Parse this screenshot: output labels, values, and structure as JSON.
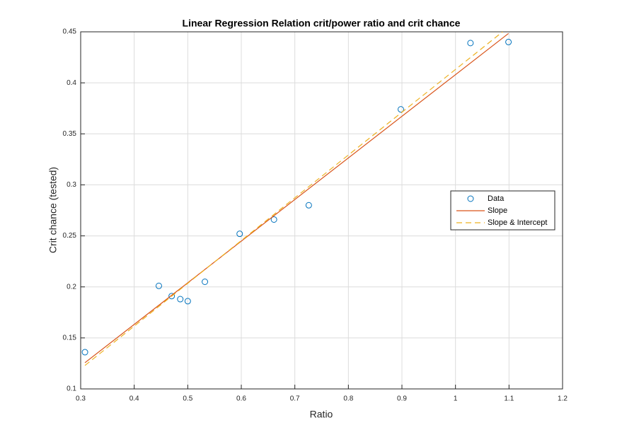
{
  "chart_data": {
    "type": "scatter",
    "title": "Linear Regression Relation crit/power ratio and crit chance",
    "xlabel": "Ratio",
    "ylabel": "Crit chance (tested)",
    "xlim": [
      0.3,
      1.2
    ],
    "xticks": [
      0.3,
      0.4,
      0.5,
      0.6,
      0.7,
      0.8,
      0.9,
      1,
      1.1,
      1.2
    ],
    "ylim": [
      0.1,
      0.45
    ],
    "yticks": [
      0.1,
      0.15,
      0.2,
      0.25,
      0.3,
      0.35,
      0.4,
      0.45
    ],
    "grid": true,
    "legend": "east",
    "series": [
      {
        "name": "Data",
        "color": "#0072bd",
        "style": "marker",
        "x": [
          0.308,
          0.446,
          0.47,
          0.486,
          0.5,
          0.532,
          0.597,
          0.661,
          0.726,
          0.898,
          1.028,
          1.099
        ],
        "values": [
          0.136,
          0.201,
          0.191,
          0.188,
          0.186,
          0.205,
          0.252,
          0.266,
          0.28,
          0.374,
          0.439,
          0.44
        ]
      },
      {
        "name": "Slope",
        "color": "#d95319",
        "style": "solid",
        "x": [
          0.308,
          1.099
        ],
        "values": [
          0.1257,
          0.4484
        ]
      },
      {
        "name": "Slope & Intercept",
        "color": "#edb120",
        "style": "dashed",
        "x": [
          0.308,
          1.088
        ],
        "values": [
          0.123,
          0.45
        ]
      }
    ]
  }
}
